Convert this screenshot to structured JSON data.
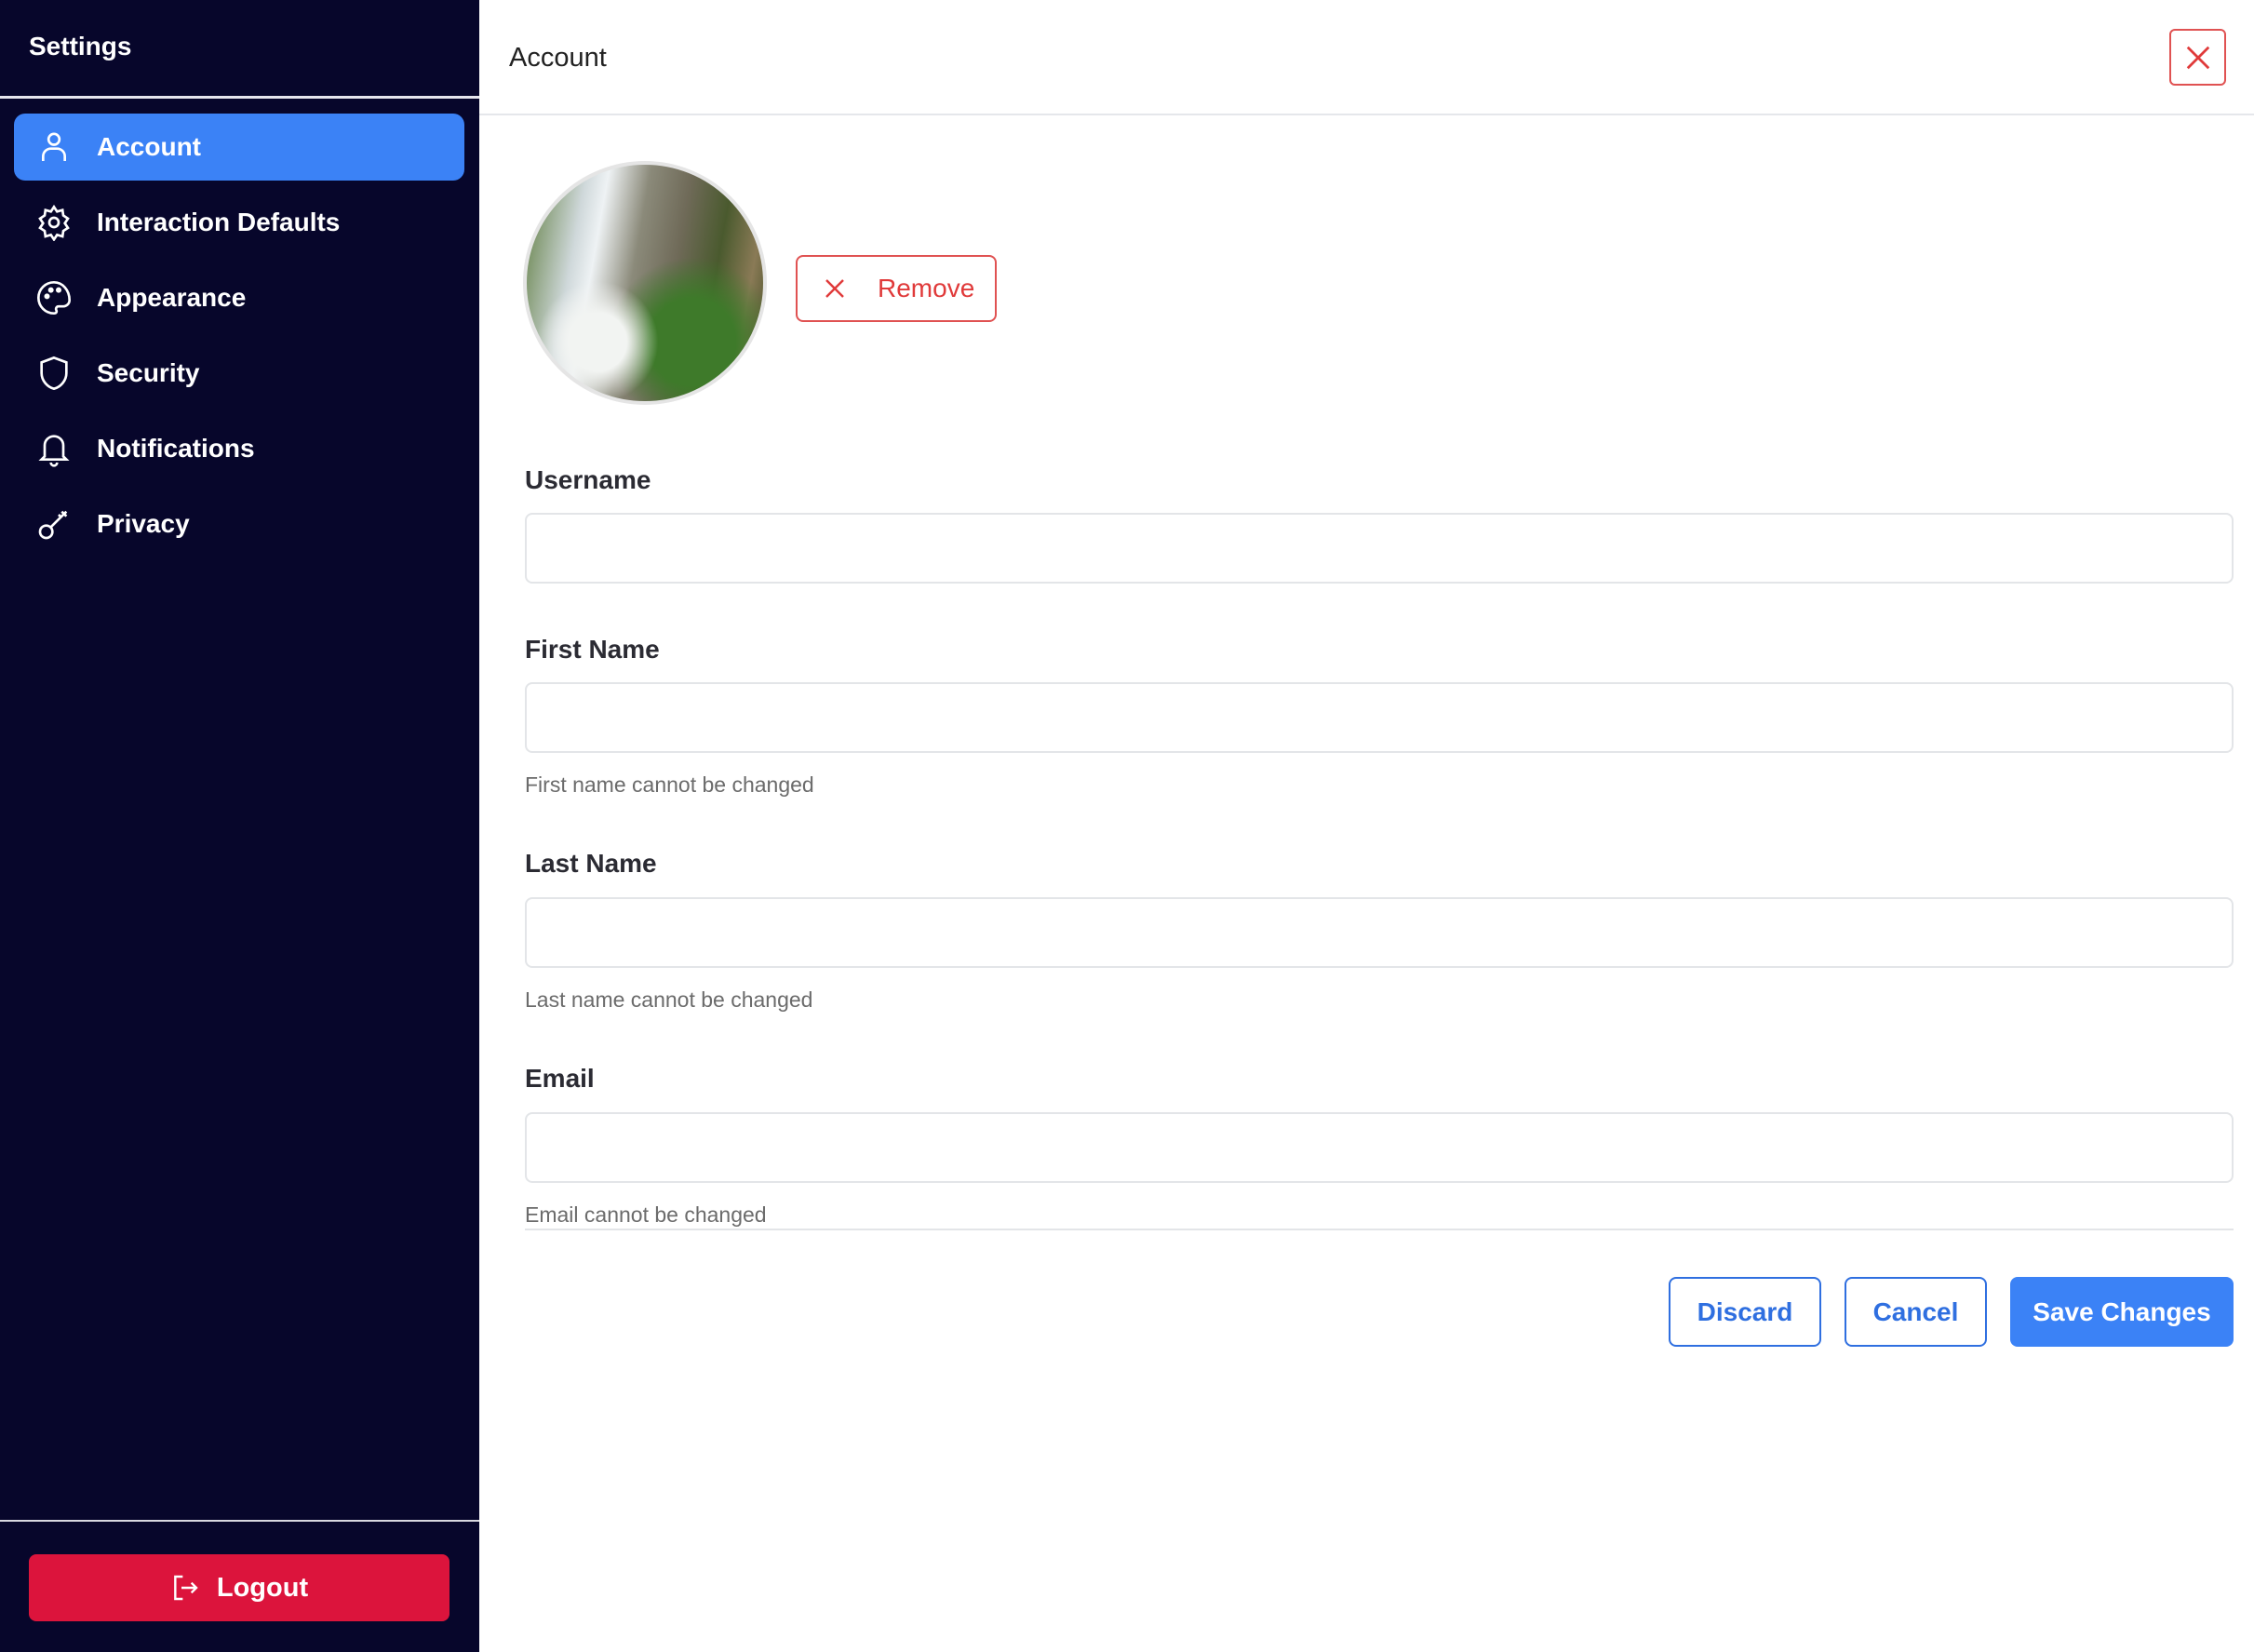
{
  "sidebar": {
    "title": "Settings",
    "items": [
      {
        "label": "Account",
        "icon": "user-icon",
        "active": true
      },
      {
        "label": "Interaction Defaults",
        "icon": "gear-icon"
      },
      {
        "label": "Appearance",
        "icon": "palette-icon"
      },
      {
        "label": "Security",
        "icon": "shield-icon"
      },
      {
        "label": "Notifications",
        "icon": "bell-icon"
      },
      {
        "label": "Privacy",
        "icon": "key-icon"
      }
    ],
    "logout_label": "Logout"
  },
  "header": {
    "title": "Account"
  },
  "avatar": {
    "remove_label": "Remove"
  },
  "form": {
    "username": {
      "label": "Username",
      "value": ""
    },
    "first_name": {
      "label": "First Name",
      "value": "",
      "hint": "First name cannot be changed"
    },
    "last_name": {
      "label": "Last Name",
      "value": "",
      "hint": "Last name cannot be changed"
    },
    "email": {
      "label": "Email",
      "value": "",
      "hint": "Email cannot be changed"
    }
  },
  "actions": {
    "discard": "Discard",
    "cancel": "Cancel",
    "save": "Save Changes"
  },
  "colors": {
    "sidebar_bg": "#07062b",
    "accent": "#3b82f6",
    "danger": "#dc143c"
  }
}
